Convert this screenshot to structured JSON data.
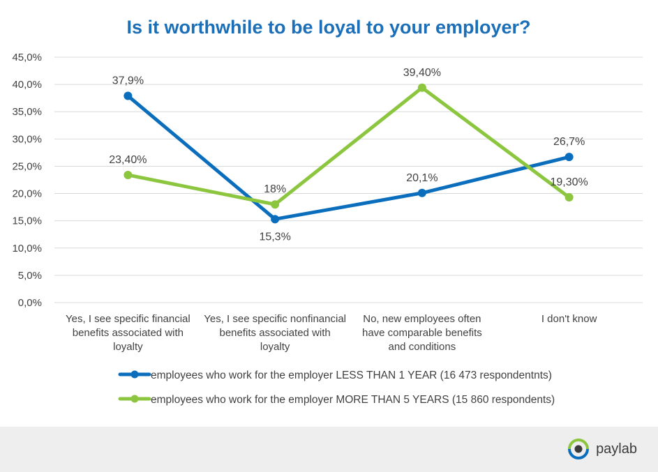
{
  "chart_data": {
    "type": "line",
    "title": "Is it worthwhile to be loyal to your employer?",
    "categories": [
      [
        "Yes, I see specific financial",
        "benefits associated with",
        "loyalty"
      ],
      [
        "Yes, I see specific nonfinancial",
        "benefits associated with",
        "loyalty"
      ],
      [
        "No, new employees often",
        "have comparable benefits",
        "and conditions"
      ],
      [
        "I don't know"
      ]
    ],
    "yticks": [
      "0,0%",
      "5,0%",
      "10,0%",
      "15,0%",
      "20,0%",
      "25,0%",
      "30,0%",
      "35,0%",
      "40,0%",
      "45,0%"
    ],
    "ylim": [
      0,
      45
    ],
    "grid": true,
    "legend_position": "bottom",
    "series": [
      {
        "name": "employees who work for the employer LESS THAN 1 YEAR (16 473 respondentnts)",
        "color": "#0a6ebd",
        "values": [
          37.9,
          15.3,
          20.1,
          26.7
        ],
        "labels": [
          "37,9%",
          "15,3%",
          "20,1%",
          "26,7%"
        ],
        "label_side": [
          "above",
          "below",
          "above",
          "above"
        ]
      },
      {
        "name": "employees who work for the employer MORE THAN 5 YEARS (15 860 respondents)",
        "color": "#8cc63f",
        "values": [
          23.4,
          18.0,
          39.4,
          19.3
        ],
        "labels": [
          "23,40%",
          "18%",
          "39,40%",
          "19,30%"
        ],
        "label_side": [
          "above",
          "above",
          "above",
          "above"
        ]
      }
    ]
  },
  "brand": {
    "logo_text": "paylab",
    "logo_icon": "paylab-eye-icon"
  }
}
